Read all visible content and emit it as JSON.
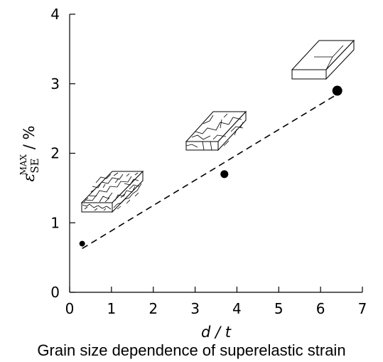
{
  "chart_data": {
    "type": "scatter",
    "x_label": "d / t",
    "y_label": {
      "symbol": "ε",
      "superscript": "MAX",
      "subscript": "SE",
      "unit": " / %"
    },
    "xlim": [
      0,
      7
    ],
    "ylim": [
      0,
      4
    ],
    "x_ticks": [
      0,
      1,
      2,
      3,
      4,
      5,
      6,
      7
    ],
    "y_ticks": [
      0,
      1,
      2,
      3,
      4
    ],
    "grid": false,
    "points": [
      {
        "x": 0.3,
        "y": 0.7,
        "size": "small"
      },
      {
        "x": 3.7,
        "y": 1.7,
        "size": "medium"
      },
      {
        "x": 6.4,
        "y": 2.9,
        "size": "large"
      }
    ],
    "trendline": {
      "style": "dashed",
      "from": [
        0.3,
        0.63
      ],
      "to": [
        6.4,
        2.85
      ]
    }
  },
  "caption": "Grain size dependence of superelastic strain"
}
